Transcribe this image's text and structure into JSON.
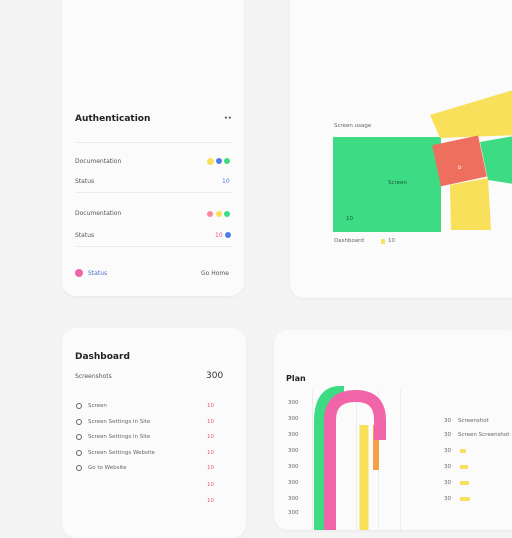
{
  "auth_card": {
    "title": "Authentication",
    "menu_label": "••",
    "rows": [
      {
        "label": "Documentation",
        "value": ""
      },
      {
        "label": "Status",
        "value": "10"
      },
      {
        "label": "Documentation",
        "value": ""
      },
      {
        "label": "Status",
        "value": "10"
      }
    ],
    "footer_label": "Status",
    "footer_action": "Go Home"
  },
  "treemap_card": {
    "title": "Screen usage",
    "legend_left": "Dashboard",
    "legend_right": "10",
    "main_label": "Screen",
    "small_label": "10",
    "alert_label": "b"
  },
  "dashboard_card": {
    "title": "Dashboard",
    "subtitle": "Screenshots",
    "value": "300",
    "items": [
      {
        "label": "Screen",
        "value": "10"
      },
      {
        "label": "Screen Settings in Site",
        "value": "10"
      },
      {
        "label": "Screen Settings in Site",
        "value": "10"
      },
      {
        "label": "Screen Settings Website",
        "value": "10"
      },
      {
        "label": "Go to Website",
        "value": "10"
      },
      {
        "label": "",
        "value": "10"
      },
      {
        "label": "",
        "value": "10"
      }
    ]
  },
  "chart_card": {
    "title": "Plan",
    "left_ticks": [
      "300",
      "300",
      "300",
      "300",
      "300",
      "300",
      "300",
      "300"
    ],
    "right_rows": [
      {
        "num": "30",
        "label": "Screenshot"
      },
      {
        "num": "30",
        "label": "Screen Screenshot"
      },
      {
        "num": "30",
        "label": ""
      },
      {
        "num": "30",
        "label": ""
      },
      {
        "num": "30",
        "label": ""
      },
      {
        "num": "30",
        "label": ""
      }
    ]
  },
  "colors": {
    "green": "#3ddc84",
    "yellow": "#f9e05a",
    "coral": "#ef6f5e",
    "pink": "#f065a8",
    "orange": "#f7a04a",
    "blue": "#4a7fe8"
  }
}
